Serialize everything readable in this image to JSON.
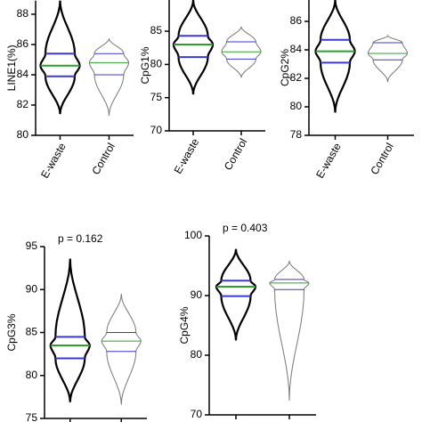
{
  "chart_data": [
    {
      "type": "violin",
      "y_label": "LINE1(%)",
      "categories": [
        "E-waste",
        "Control"
      ],
      "stats": {
        "min": [
          81.4,
          81.3
        ],
        "q1": [
          83.9,
          84.0
        ],
        "median": [
          84.6,
          84.8
        ],
        "q3": [
          85.4,
          85.4
        ],
        "max": [
          88.9,
          86.4
        ]
      },
      "outline_colors": [
        "#000000",
        "#777777"
      ],
      "median_color": "#2ca02c",
      "quartile_color": "#3a3ad0",
      "ylim": [
        80,
        88.9
      ],
      "yticks": [
        80,
        82,
        84,
        86,
        88
      ]
    },
    {
      "type": "violin",
      "y_label": "CpG1%",
      "categories": [
        "E-waste",
        "Control"
      ],
      "stats": {
        "min": [
          75.5,
          78.0
        ],
        "q1": [
          81.1,
          80.8
        ],
        "median": [
          83.0,
          81.9
        ],
        "q3": [
          84.3,
          83.4
        ],
        "max": [
          89.7,
          85.7
        ]
      },
      "outline_colors": [
        "#000000",
        "#777777"
      ],
      "median_color": "#2ca02c",
      "quartile_color": "#3a3ad0",
      "ylim": [
        70,
        89.7
      ],
      "yticks": [
        70,
        75,
        80,
        85
      ]
    },
    {
      "type": "violin",
      "y_label": "CpG2%",
      "categories": [
        "E-waste",
        "Control"
      ],
      "stats": {
        "min": [
          79.6,
          81.75
        ],
        "q1": [
          83.1,
          83.3
        ],
        "median": [
          83.9,
          83.75
        ],
        "q3": [
          84.7,
          84.5
        ],
        "max": [
          87.5,
          85.0
        ]
      },
      "outline_colors": [
        "#000000",
        "#777777"
      ],
      "median_color": "#2ca02c",
      "quartile_color": "#3a3ad0",
      "ylim": [
        78,
        87.5
      ],
      "yticks": [
        78,
        80,
        82,
        84,
        86
      ]
    },
    {
      "type": "violin",
      "y_label": "CpG3%",
      "annotation": "p = 0.162",
      "categories": [
        null,
        null
      ],
      "stats": {
        "min": [
          76.9,
          76.6
        ],
        "q1": [
          82.0,
          82.8
        ],
        "median": [
          83.5,
          84.0
        ],
        "q3": [
          84.5,
          85.0
        ],
        "max": [
          93.6,
          89.5
        ]
      },
      "outline_colors": [
        "#000000",
        "#777777"
      ],
      "median_color": "#2ca02c",
      "quartile_color": "#3a3ad0",
      "ylim": [
        75,
        95
      ],
      "yticks": [
        75,
        80,
        85,
        90,
        95
      ]
    },
    {
      "type": "violin",
      "y_label": "CpG4%",
      "annotation": "p = 0.403",
      "categories": [
        null,
        null
      ],
      "stats": {
        "min": [
          82.5,
          72.4
        ],
        "q1": [
          89.9,
          91.0
        ],
        "median": [
          91.5,
          92.1
        ],
        "q3": [
          92.5,
          92.7
        ],
        "max": [
          97.8,
          95.8
        ]
      },
      "outline_colors": [
        "#000000",
        "#777777"
      ],
      "median_color": "#2ca02c",
      "quartile_color": "#3a3ad0",
      "ylim": [
        70,
        100
      ],
      "yticks": [
        70,
        80,
        90,
        100
      ]
    }
  ]
}
